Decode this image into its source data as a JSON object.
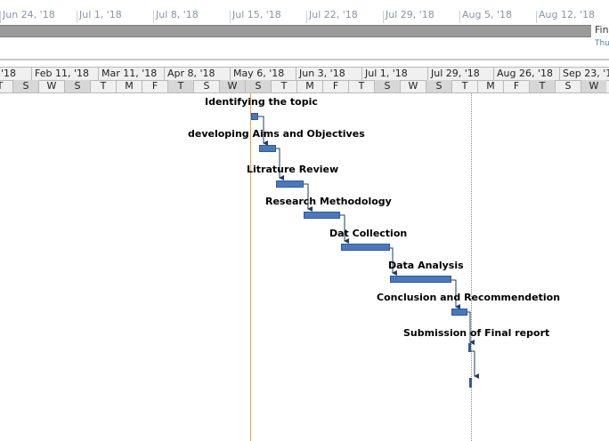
{
  "timeline": {
    "dates": [
      "Jun 24, '18",
      "Jul 1, '18",
      "Jul 8, '18",
      "Jul 15, '18",
      "Jul 22, '18",
      "Jul 29, '18",
      "Aug 5, '18",
      "Aug 12, '18"
    ],
    "finish_label": "Fin",
    "finish_date": "Thu"
  },
  "timescale": {
    "top_tier": [
      "'18",
      "Feb 11, '18",
      "Mar 11, '18",
      "Apr 8, '18",
      "May 6, '18",
      "Jun 3, '18",
      "Jul 1, '18",
      "Jul 29, '18",
      "Aug 26, '18",
      "Sep 23, '1"
    ],
    "bottom_tier": [
      "T",
      "S",
      "W",
      "S",
      "T",
      "M",
      "F",
      "T",
      "S",
      "W",
      "S",
      "T",
      "M",
      "F",
      "T",
      "S",
      "W",
      "S",
      "T",
      "M",
      "F",
      "T",
      "S",
      "W"
    ]
  },
  "tasks": [
    {
      "name": "Identifying the topic"
    },
    {
      "name": "developing Aims and Objectives"
    },
    {
      "name": "Litrature Review"
    },
    {
      "name": "Research Methodology"
    },
    {
      "name": "Dat Collection"
    },
    {
      "name": "Data Analysis"
    },
    {
      "name": "Conclusion and Recommendetion"
    },
    {
      "name": "Submission of Final report"
    }
  ],
  "colors": {
    "task_bar": "#4a78bd",
    "today_line": "#e8a541",
    "timeline_bar": "#9a9a9a"
  }
}
